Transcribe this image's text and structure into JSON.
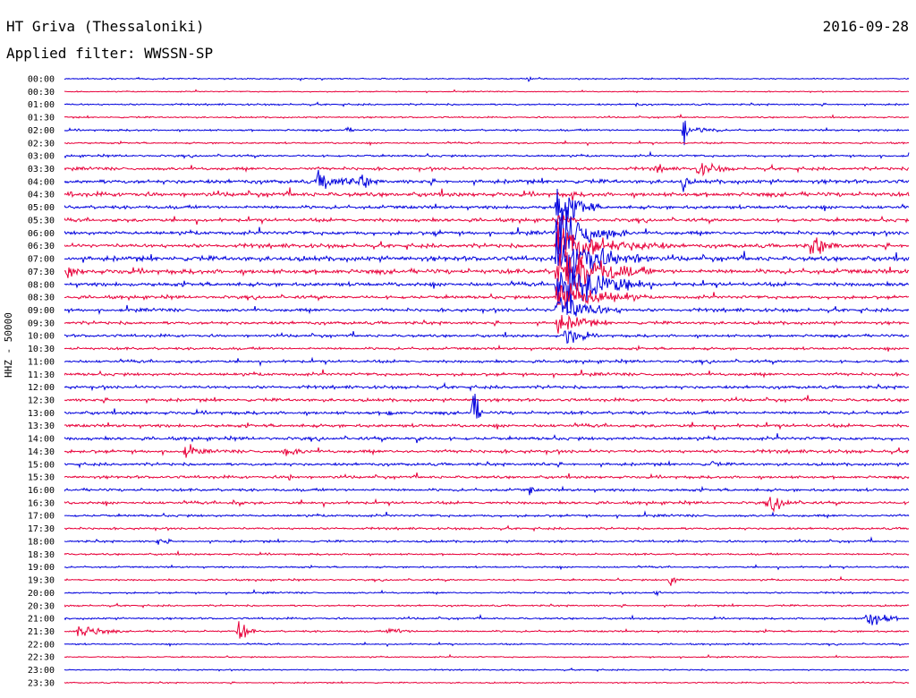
{
  "header": {
    "station": "HT Griva (Thessaloniki)",
    "date": "2016-09-28",
    "filter": "Applied filter: WWSSN-SP"
  },
  "axis": {
    "ylabel": "HHZ - 50000"
  },
  "colors": {
    "even_trace": "#0000dd",
    "odd_trace": "#e8003a"
  },
  "chart_data": {
    "type": "line",
    "title": "HT Griva (Thessaloniki)",
    "subtitle": "Applied filter: WWSSN-SP",
    "ylabel": "HHZ - 50000",
    "xlabel": "",
    "row_labels": [
      "00:00",
      "00:30",
      "01:00",
      "01:30",
      "02:00",
      "02:30",
      "03:00",
      "03:30",
      "04:00",
      "04:30",
      "05:00",
      "05:30",
      "06:00",
      "06:30",
      "07:00",
      "07:30",
      "08:00",
      "08:30",
      "09:00",
      "09:30",
      "10:00",
      "10:30",
      "11:00",
      "11:30",
      "12:00",
      "12:30",
      "13:00",
      "13:30",
      "14:00",
      "14:30",
      "15:00",
      "15:30",
      "16:00",
      "16:30",
      "17:00",
      "17:30",
      "18:00",
      "18:30",
      "19:00",
      "19:30",
      "20:00",
      "20:30",
      "21:00",
      "21:30",
      "22:00",
      "22:30",
      "23:00",
      "23:30"
    ],
    "row_minutes": 30,
    "noise_levels": [
      0.6,
      0.5,
      0.8,
      0.7,
      0.9,
      0.8,
      1.0,
      1.4,
      1.8,
      2.0,
      1.6,
      1.6,
      1.7,
      1.8,
      2.2,
      2.2,
      1.8,
      1.5,
      1.5,
      1.4,
      1.3,
      1.2,
      1.3,
      1.4,
      1.4,
      1.4,
      1.5,
      1.5,
      1.5,
      1.5,
      1.3,
      1.3,
      1.3,
      1.3,
      1.1,
      1.0,
      1.0,
      0.9,
      0.8,
      0.8,
      0.8,
      0.8,
      0.9,
      0.9,
      0.7,
      0.6,
      0.6,
      0.6
    ],
    "events": [
      {
        "row": 0,
        "minute": 16.5,
        "amplitude": 3,
        "duration": 0.6
      },
      {
        "row": 2,
        "minute": 20.3,
        "amplitude": 2,
        "duration": 0.8
      },
      {
        "row": 4,
        "minute": 22.0,
        "amplitude": 30,
        "duration": 0.3
      },
      {
        "row": 4,
        "minute": 22.5,
        "amplitude": 4,
        "duration": 1.5
      },
      {
        "row": 4,
        "minute": 10.0,
        "amplitude": 3,
        "duration": 1.0
      },
      {
        "row": 7,
        "minute": 21.0,
        "amplitude": 5,
        "duration": 1.2
      },
      {
        "row": 7,
        "minute": 22.5,
        "amplitude": 10,
        "duration": 1.5
      },
      {
        "row": 8,
        "minute": 9.0,
        "amplitude": 10,
        "duration": 2.5
      },
      {
        "row": 8,
        "minute": 10.5,
        "amplitude": 10,
        "duration": 1.0
      },
      {
        "row": 8,
        "minute": 22.0,
        "amplitude": 14,
        "duration": 0.3
      },
      {
        "row": 9,
        "minute": 0.2,
        "amplitude": 5,
        "duration": 0.5
      },
      {
        "row": 9,
        "minute": 18.0,
        "amplitude": 8,
        "duration": 0.3
      },
      {
        "row": 10,
        "minute": 17.5,
        "amplitude": 30,
        "duration": 1.5
      },
      {
        "row": 11,
        "minute": 17.5,
        "amplitude": 8,
        "duration": 1.0
      },
      {
        "row": 12,
        "minute": 17.5,
        "amplitude": 30,
        "duration": 2.5
      },
      {
        "row": 12,
        "minute": 13.2,
        "amplitude": 4,
        "duration": 0.5
      },
      {
        "row": 13,
        "minute": 17.5,
        "amplitude": 30,
        "duration": 3.0
      },
      {
        "row": 13,
        "minute": 20.5,
        "amplitude": 6,
        "duration": 2.5
      },
      {
        "row": 13,
        "minute": 26.5,
        "amplitude": 14,
        "duration": 1.5
      },
      {
        "row": 14,
        "minute": 17.5,
        "amplitude": 30,
        "duration": 3.5
      },
      {
        "row": 15,
        "minute": 17.5,
        "amplitude": 30,
        "duration": 3.5
      },
      {
        "row": 15,
        "minute": 0.1,
        "amplitude": 9,
        "duration": 1.0
      },
      {
        "row": 16,
        "minute": 17.5,
        "amplitude": 30,
        "duration": 3.5
      },
      {
        "row": 17,
        "minute": 17.5,
        "amplitude": 24,
        "duration": 3.0
      },
      {
        "row": 18,
        "minute": 17.5,
        "amplitude": 20,
        "duration": 2.5
      },
      {
        "row": 19,
        "minute": 17.5,
        "amplitude": 12,
        "duration": 2.0
      },
      {
        "row": 20,
        "minute": 17.8,
        "amplitude": 9,
        "duration": 1.5
      },
      {
        "row": 26,
        "minute": 14.5,
        "amplitude": 30,
        "duration": 0.4
      },
      {
        "row": 26,
        "minute": 11.5,
        "amplitude": 5,
        "duration": 0.5
      },
      {
        "row": 28,
        "minute": 12.5,
        "amplitude": 6,
        "duration": 0.6
      },
      {
        "row": 29,
        "minute": 4.3,
        "amplitude": 8,
        "duration": 1.2
      },
      {
        "row": 29,
        "minute": 7.8,
        "amplitude": 6,
        "duration": 1.5
      },
      {
        "row": 30,
        "minute": 17.0,
        "amplitude": 5,
        "duration": 0.3
      },
      {
        "row": 30,
        "minute": 23.0,
        "amplitude": 4,
        "duration": 1.0
      },
      {
        "row": 31,
        "minute": 8.0,
        "amplitude": 6,
        "duration": 0.5
      },
      {
        "row": 32,
        "minute": 16.5,
        "amplitude": 6,
        "duration": 0.5
      },
      {
        "row": 33,
        "minute": 25.0,
        "amplitude": 9,
        "duration": 1.5
      },
      {
        "row": 33,
        "minute": 6.0,
        "amplitude": 6,
        "duration": 0.5
      },
      {
        "row": 36,
        "minute": 3.3,
        "amplitude": 4,
        "duration": 1.0
      },
      {
        "row": 39,
        "minute": 21.5,
        "amplitude": 10,
        "duration": 0.5
      },
      {
        "row": 40,
        "minute": 21.0,
        "amplitude": 7,
        "duration": 0.3
      },
      {
        "row": 42,
        "minute": 28.5,
        "amplitude": 14,
        "duration": 1.2
      },
      {
        "row": 43,
        "minute": 0.5,
        "amplitude": 9,
        "duration": 1.5
      },
      {
        "row": 43,
        "minute": 6.2,
        "amplitude": 16,
        "duration": 0.6
      },
      {
        "row": 43,
        "minute": 11.5,
        "amplitude": 5,
        "duration": 1.5
      }
    ]
  }
}
